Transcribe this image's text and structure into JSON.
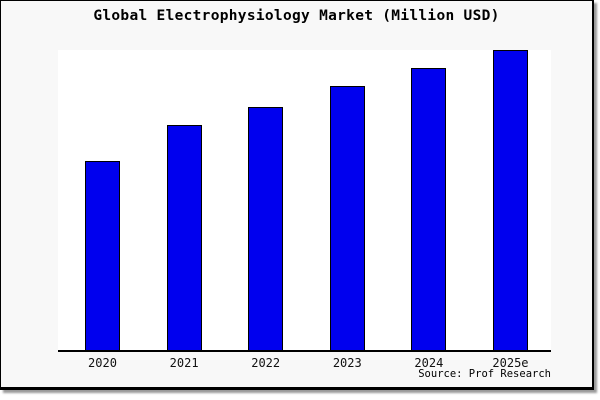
{
  "header": {
    "title": "Global Electrophysiology Market (Million USD)"
  },
  "footer": {
    "source": "Source: Prof Research"
  },
  "colors": {
    "canvas_background": "#f8f8f8",
    "plot_background": "#ffffff",
    "bar_fill": "#0000ee",
    "bar_border": "#000000",
    "frame_border": "#000000",
    "shadow": "#9a9a9a",
    "text": "#000000"
  },
  "chart_data": {
    "type": "bar",
    "title": "Global Electrophysiology Market (Million USD)",
    "categories": [
      "2020",
      "2021",
      "2022",
      "2023",
      "2024",
      "2025e"
    ],
    "values": [
      63,
      75,
      81,
      88,
      94,
      100
    ],
    "values_unit": "percent of tallest bar (2025e)",
    "values_note": "no y-axis, gridlines or data labels are shown in the image; values estimated from relative bar heights",
    "xlabel": "",
    "ylabel": "",
    "y_axis_shown": false,
    "gridlines": false,
    "legend": false,
    "bar_color": "#0000ee",
    "bar_border_color": "#000000",
    "source": "Source: Prof Research"
  }
}
